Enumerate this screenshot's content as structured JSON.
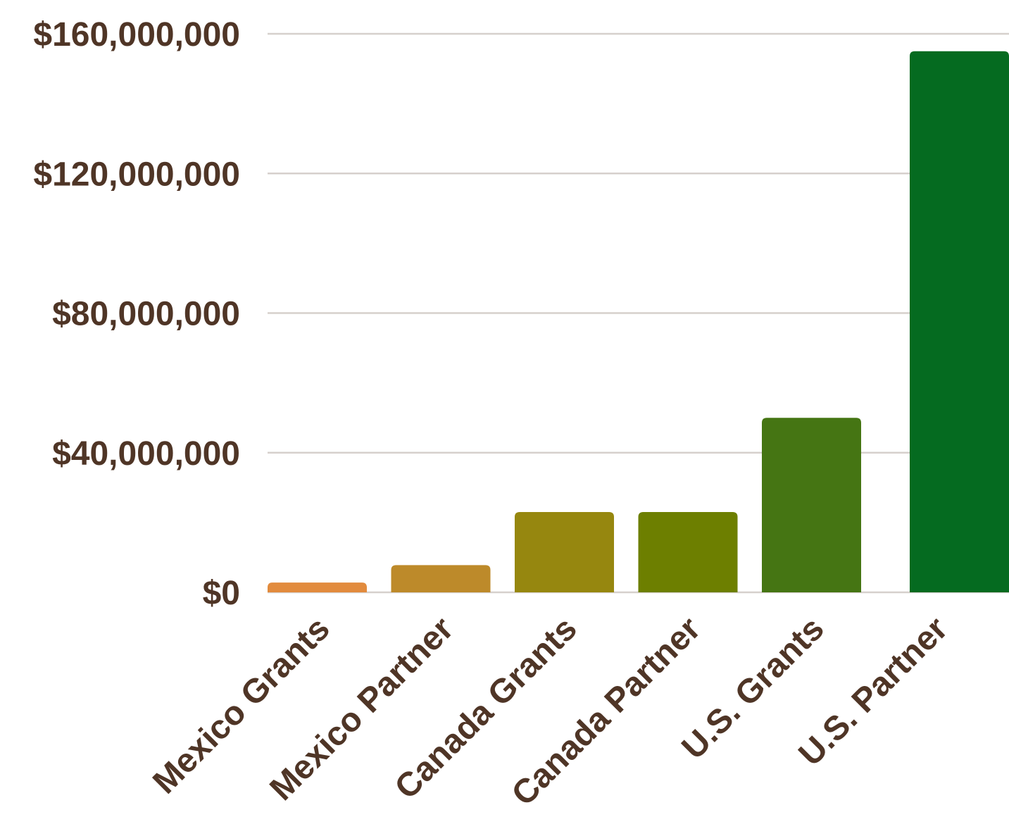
{
  "chart_data": {
    "type": "bar",
    "title": "",
    "xlabel": "",
    "ylabel": "",
    "categories": [
      "Mexico Grants",
      "Mexico Partner",
      "Canada Grants",
      "Canada Partner",
      "U.S. Grants",
      "U.S. Partner"
    ],
    "values": [
      2800000,
      7800000,
      23000000,
      23000000,
      50000000,
      155000000
    ],
    "colors": [
      "#e28b3d",
      "#bd8a2a",
      "#96870f",
      "#6d7f00",
      "#457513",
      "#056b20"
    ],
    "ylim": [
      0,
      160000000
    ],
    "yticks": [
      0,
      40000000,
      80000000,
      120000000,
      160000000
    ],
    "ytick_labels": [
      "$0",
      "$40,000,000",
      "$80,000,000",
      "$120,000,000",
      "$160,000,000"
    ],
    "grid": true,
    "legend": "none",
    "gridline_color": "#d6d0cc",
    "text_color": "#4f3526"
  }
}
